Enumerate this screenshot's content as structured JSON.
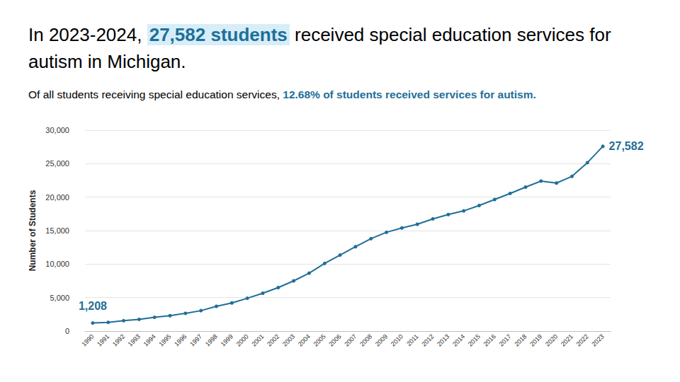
{
  "chart_data": {
    "type": "line",
    "title": "In 2023-2024, 27,582 students received special education services for autism in Michigan.",
    "title_highlight": "27,582 students",
    "subtitle": "Of all students receiving special education services, 12.68% of students received services for autism.",
    "subtitle_highlight": "12.68% of students received services for autism.",
    "y_label": "Number of Students",
    "categories": [
      "1990",
      "1991",
      "1992",
      "1993",
      "1994",
      "1995",
      "1996",
      "1997",
      "1998",
      "1999",
      "2000",
      "2001",
      "2002",
      "2003",
      "2004",
      "2005",
      "2006",
      "2007",
      "2008",
      "2009",
      "2010",
      "2011",
      "2012",
      "2013",
      "2014",
      "2015",
      "2016",
      "2017",
      "2018",
      "2019",
      "2020",
      "2021",
      "2022",
      "2023"
    ],
    "values": [
      1208,
      1300,
      1550,
      1750,
      2050,
      2300,
      2650,
      3050,
      3700,
      4200,
      4900,
      5650,
      6500,
      7500,
      8650,
      10100,
      11350,
      12600,
      13800,
      14750,
      15400,
      15950,
      16750,
      17400,
      17950,
      18750,
      19650,
      20550,
      21500,
      22400,
      22100,
      23100,
      25150,
      27582
    ],
    "annotations": [
      {
        "x": "1990",
        "y": 1208,
        "text": "1,208"
      },
      {
        "x": "2023",
        "y": 27582,
        "text": "27,582"
      }
    ],
    "color": "#1f6f98",
    "marker": "circle",
    "ylim": [
      0,
      30000
    ],
    "yticks": [
      0,
      5000,
      10000,
      15000,
      20000,
      25000,
      30000
    ],
    "grid": true
  }
}
